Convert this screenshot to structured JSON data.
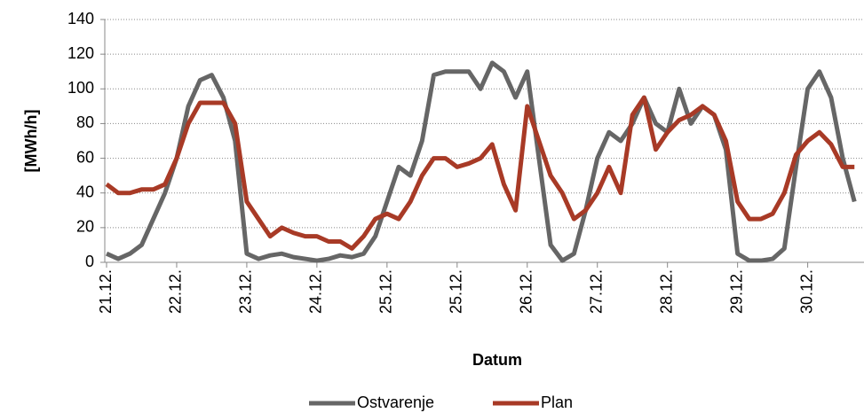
{
  "chart_data": {
    "type": "line",
    "xlabel": "Datum",
    "ylabel": "[MWh/h]",
    "categories": [
      "21.12.",
      null,
      null,
      null,
      null,
      null,
      "22.12.",
      null,
      null,
      null,
      null,
      null,
      "23.12.",
      null,
      null,
      null,
      null,
      null,
      "24.12.",
      null,
      null,
      null,
      null,
      null,
      "25.12.",
      null,
      null,
      null,
      null,
      null,
      "25.12.",
      null,
      null,
      null,
      null,
      null,
      "26.12.",
      null,
      null,
      null,
      null,
      null,
      "27.12.",
      null,
      null,
      null,
      null,
      null,
      "28.12.",
      null,
      null,
      null,
      null,
      null,
      "29.12.",
      null,
      null,
      null,
      null,
      null,
      "30.12.",
      null,
      null,
      null,
      null
    ],
    "series": [
      {
        "name": "Ostvarenje",
        "color": "#666666",
        "values": [
          5,
          2,
          5,
          10,
          25,
          40,
          60,
          90,
          105,
          108,
          95,
          70,
          5,
          2,
          4,
          5,
          3,
          2,
          1,
          2,
          4,
          3,
          5,
          15,
          35,
          55,
          50,
          70,
          108,
          110,
          110,
          110,
          100,
          115,
          110,
          95,
          110,
          60,
          10,
          1,
          5,
          30,
          60,
          75,
          70,
          80,
          95,
          80,
          75,
          100,
          80,
          90,
          85,
          65,
          5,
          1,
          1,
          2,
          8,
          55,
          100,
          110,
          95,
          60,
          35
        ]
      },
      {
        "name": "Plan",
        "color": "#a83a26",
        "values": [
          45,
          40,
          40,
          42,
          42,
          45,
          60,
          80,
          92,
          92,
          92,
          80,
          35,
          25,
          15,
          20,
          17,
          15,
          15,
          12,
          12,
          8,
          15,
          25,
          28,
          25,
          35,
          50,
          60,
          60,
          55,
          57,
          60,
          68,
          45,
          30,
          90,
          70,
          50,
          40,
          25,
          30,
          40,
          55,
          40,
          85,
          95,
          65,
          75,
          82,
          85,
          90,
          85,
          70,
          35,
          25,
          25,
          28,
          40,
          62,
          70,
          75,
          68,
          55,
          55
        ]
      }
    ],
    "ylim": [
      0,
      140
    ],
    "yticks": [
      0,
      20,
      40,
      60,
      80,
      100,
      120,
      140
    ],
    "grid": true,
    "legend": "bottom"
  }
}
